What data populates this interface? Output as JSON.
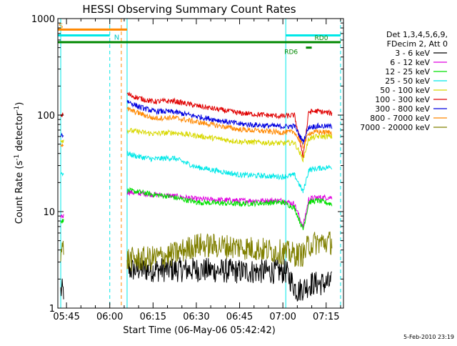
{
  "chart_data": {
    "type": "line",
    "title": "HESSI Observing Summary Count Rates",
    "xlabel": "Start Time (06-May-06 05:42:42)",
    "ylabel_main": "Count Rate (s",
    "ylabel_sup1": "-1",
    "ylabel_mid": " detector",
    "ylabel_sup2": "-1",
    "ylabel_end": ")",
    "y_scale": "log",
    "ylim": [
      1,
      1000
    ],
    "xlim": [
      "05:42",
      "07:21"
    ],
    "x_ticks": [
      "05:45",
      "06:00",
      "06:15",
      "06:30",
      "06:45",
      "07:00",
      "07:15"
    ],
    "y_ticks": [
      "1",
      "10",
      "100",
      "1000"
    ],
    "legend_placement": "right",
    "legend_header": [
      "Det 1,3,4,5,6,9,",
      "FDecim 2, Att 0"
    ],
    "series": [
      {
        "name": "3 - 6 keV",
        "color": "#000000",
        "points": [
          [
            "05:43",
            1.5
          ],
          [
            "05:44",
            1.5
          ],
          [
            "06:06",
            2.5
          ],
          [
            "06:10",
            2.5
          ],
          [
            "06:15",
            2.5
          ],
          [
            "06:30",
            2.5
          ],
          [
            "06:45",
            2.4
          ],
          [
            "07:01",
            2.4
          ],
          [
            "07:05",
            1.5
          ],
          [
            "07:10",
            1.8
          ],
          [
            "07:17",
            1.8
          ]
        ]
      },
      {
        "name": "6 - 12 keV",
        "color": "#e000e0",
        "points": [
          [
            "05:43",
            9
          ],
          [
            "05:44",
            9
          ],
          [
            "06:06",
            16
          ],
          [
            "06:10",
            15.5
          ],
          [
            "06:15",
            15
          ],
          [
            "06:22",
            14.5
          ],
          [
            "06:30",
            13.5
          ],
          [
            "06:45",
            13
          ],
          [
            "07:00",
            13
          ],
          [
            "07:04",
            12
          ],
          [
            "07:07",
            7
          ],
          [
            "07:09",
            13.5
          ],
          [
            "07:12",
            14
          ],
          [
            "07:17",
            14
          ]
        ]
      },
      {
        "name": "12 - 25 keV",
        "color": "#00e000",
        "points": [
          [
            "05:43",
            8
          ],
          [
            "05:44",
            8
          ],
          [
            "06:06",
            16.5
          ],
          [
            "06:10",
            16
          ],
          [
            "06:15",
            15
          ],
          [
            "06:20",
            14.5
          ],
          [
            "06:30",
            12.5
          ],
          [
            "06:45",
            12
          ],
          [
            "07:00",
            12.5
          ],
          [
            "07:04",
            11
          ],
          [
            "07:07",
            6.5
          ],
          [
            "07:09",
            12.5
          ],
          [
            "07:12",
            13
          ],
          [
            "07:17",
            12
          ]
        ]
      },
      {
        "name": "25 - 50 keV",
        "color": "#00e8e8",
        "points": [
          [
            "05:43",
            25
          ],
          [
            "05:44",
            25
          ],
          [
            "06:06",
            40
          ],
          [
            "06:10",
            37
          ],
          [
            "06:15",
            35
          ],
          [
            "06:22",
            36
          ],
          [
            "06:30",
            29
          ],
          [
            "06:45",
            24
          ],
          [
            "07:00",
            23
          ],
          [
            "07:04",
            24
          ],
          [
            "07:07",
            16
          ],
          [
            "07:09",
            27
          ],
          [
            "07:12",
            28
          ],
          [
            "07:17",
            29
          ]
        ]
      },
      {
        "name": "50 - 100 keV",
        "color": "#d8d800",
        "points": [
          [
            "05:43",
            55
          ],
          [
            "05:44",
            55
          ],
          [
            "06:06",
            70
          ],
          [
            "06:10",
            67
          ],
          [
            "06:15",
            64
          ],
          [
            "06:22",
            66
          ],
          [
            "06:30",
            61
          ],
          [
            "06:45",
            53
          ],
          [
            "07:00",
            51
          ],
          [
            "07:04",
            52
          ],
          [
            "07:07",
            35
          ],
          [
            "07:09",
            57
          ],
          [
            "07:12",
            60
          ],
          [
            "07:17",
            60
          ]
        ]
      },
      {
        "name": "100 - 300 keV",
        "color": "#e00000",
        "points": [
          [
            "05:43",
            100
          ],
          [
            "05:44",
            100
          ],
          [
            "06:06",
            165
          ],
          [
            "06:10",
            150
          ],
          [
            "06:15",
            138
          ],
          [
            "06:22",
            140
          ],
          [
            "06:30",
            125
          ],
          [
            "06:45",
            105
          ],
          [
            "07:00",
            97
          ],
          [
            "07:04",
            100
          ],
          [
            "07:07",
            38
          ],
          [
            "07:09",
            108
          ],
          [
            "07:12",
            110
          ],
          [
            "07:17",
            104
          ]
        ]
      },
      {
        "name": "300 - 800 keV",
        "color": "#0000e0",
        "points": [
          [
            "05:43",
            62
          ],
          [
            "05:44",
            62
          ],
          [
            "06:06",
            140
          ],
          [
            "06:10",
            122
          ],
          [
            "06:15",
            110
          ],
          [
            "06:22",
            108
          ],
          [
            "06:30",
            97
          ],
          [
            "06:45",
            81
          ],
          [
            "07:00",
            76
          ],
          [
            "07:04",
            77
          ],
          [
            "07:07",
            53
          ],
          [
            "07:09",
            75
          ],
          [
            "07:12",
            77
          ],
          [
            "07:17",
            76
          ]
        ]
      },
      {
        "name": "800 - 7000 keV",
        "color": "#ff8800",
        "points": [
          [
            "05:43",
            50
          ],
          [
            "05:44",
            50
          ],
          [
            "06:06",
            115
          ],
          [
            "06:10",
            105
          ],
          [
            "06:15",
            93
          ],
          [
            "06:22",
            94
          ],
          [
            "06:30",
            85
          ],
          [
            "06:45",
            71
          ],
          [
            "07:00",
            66
          ],
          [
            "07:04",
            67
          ],
          [
            "07:07",
            47
          ],
          [
            "07:09",
            65
          ],
          [
            "07:12",
            67
          ],
          [
            "07:17",
            66
          ]
        ]
      },
      {
        "name": "7000 - 20000 keV",
        "color": "#808000",
        "points": [
          [
            "05:43",
            4
          ],
          [
            "05:44",
            4
          ],
          [
            "06:06",
            3.2
          ],
          [
            "06:10",
            3.2
          ],
          [
            "06:15",
            3.3
          ],
          [
            "06:22",
            3.6
          ],
          [
            "06:30",
            4.5
          ],
          [
            "06:45",
            4.3
          ],
          [
            "07:00",
            3.8
          ],
          [
            "07:04",
            3.6
          ],
          [
            "07:07",
            3.6
          ],
          [
            "07:09",
            4.5
          ],
          [
            "07:12",
            4.8
          ],
          [
            "07:17",
            4.8
          ]
        ]
      }
    ],
    "annotations": {
      "flag_labels": {
        "s": "S",
        "n": "N",
        "rd6": "RD6",
        "rd0": "RD0"
      },
      "flags": [
        {
          "label": "S",
          "start": "05:42",
          "end": "06:06",
          "y": 770,
          "color": "#ff8800"
        },
        {
          "label": "N",
          "start": "05:42",
          "end": "06:00",
          "y": 670,
          "color": "#00e8e8"
        },
        {
          "label": "",
          "start": "07:01",
          "end": "07:20",
          "y": 670,
          "color": "#00e8e8"
        },
        {
          "label": "",
          "start": "05:42",
          "end": "07:20",
          "y": 570,
          "color": "#008800"
        },
        {
          "label": "",
          "start": "07:08",
          "end": "07:10",
          "y": 500,
          "color": "#008800"
        }
      ],
      "vlines": [
        {
          "time": "05:43",
          "color": "#00e8e8",
          "style": "solid"
        },
        {
          "time": "06:00",
          "color": "#00e8e8",
          "style": "dashed"
        },
        {
          "time": "06:04",
          "color": "#ff8800",
          "style": "dashed"
        },
        {
          "time": "06:06",
          "color": "#00e8e8",
          "style": "solid"
        },
        {
          "time": "07:01",
          "color": "#00e8e8",
          "style": "solid"
        },
        {
          "time": "07:20",
          "color": "#00e8e8",
          "style": "dashed"
        }
      ]
    },
    "footer": "5-Feb-2010 23:19"
  }
}
